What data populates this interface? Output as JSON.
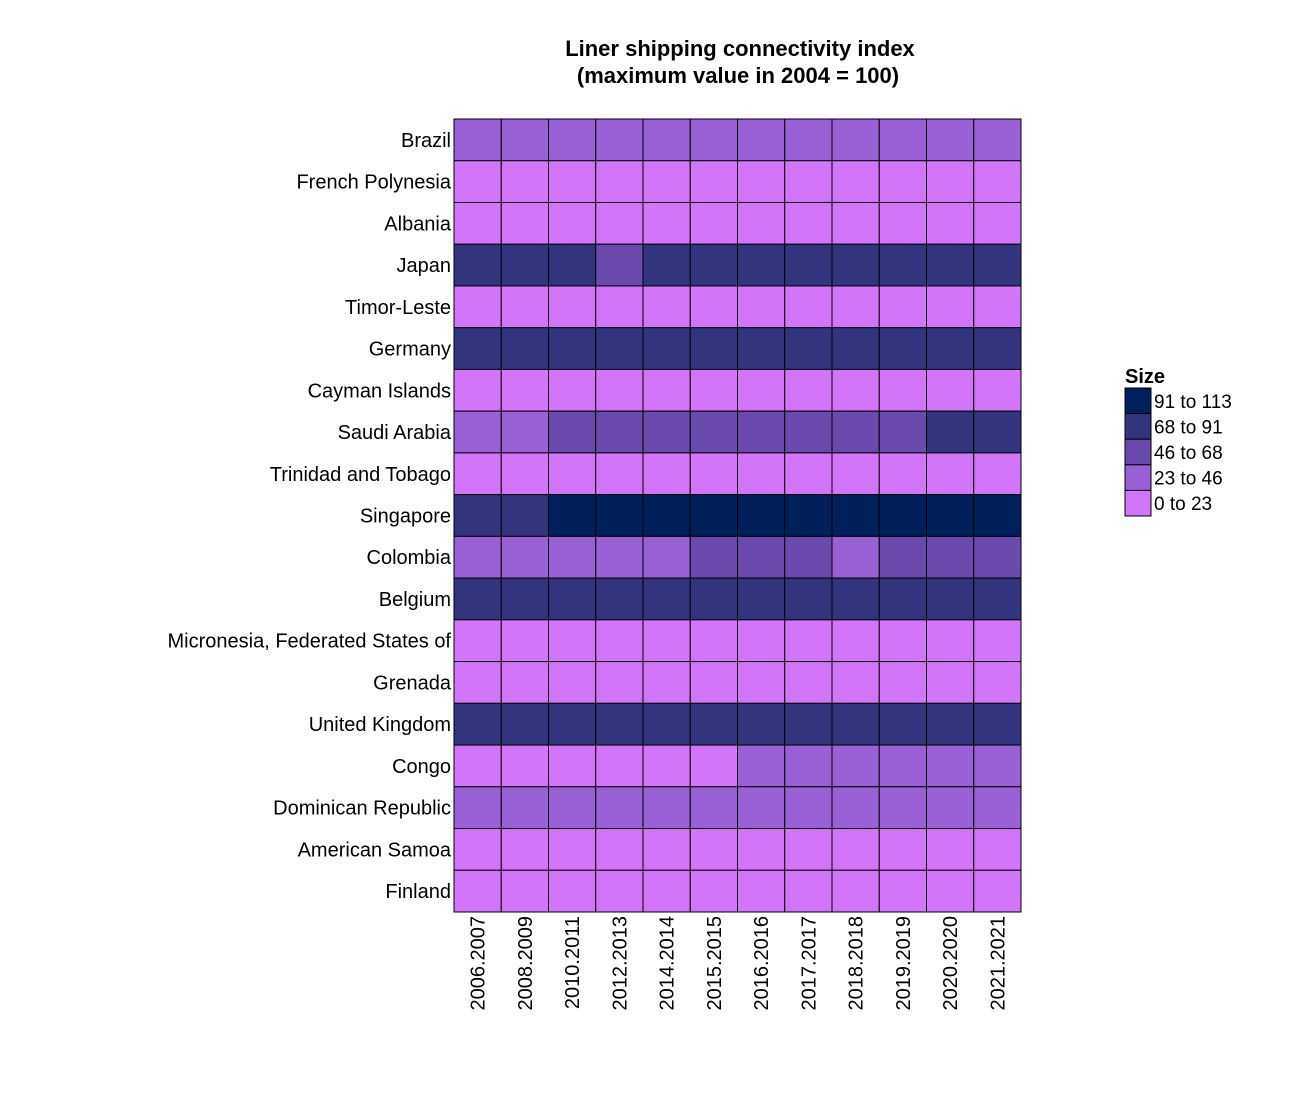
{
  "chart_data": {
    "type": "heatmap",
    "title": "Liner shipping connectivity index",
    "subtitle": "(maximum value in 2004 = 100)",
    "rows": [
      "Brazil",
      "French Polynesia",
      "Albania",
      "Japan",
      "Timor-Leste",
      "Germany",
      "Cayman Islands",
      "Saudi Arabia",
      "Trinidad and Tobago",
      "Singapore",
      "Colombia",
      "Belgium",
      "Micronesia, Federated States of",
      "Grenada",
      "United Kingdom",
      "Congo",
      "Dominican Republic",
      "American Samoa",
      "Finland"
    ],
    "columns": [
      "2006.2007",
      "2008.2009",
      "2010.2011",
      "2012.2013",
      "2014.2014",
      "2015.2015",
      "2016.2016",
      "2017.2017",
      "2018.2018",
      "2019.2019",
      "2020.2020",
      "2021.2021"
    ],
    "bin_index_values": [
      [
        1,
        1,
        1,
        1,
        1,
        1,
        1,
        1,
        1,
        1,
        1,
        1
      ],
      [
        0,
        0,
        0,
        0,
        0,
        0,
        0,
        0,
        0,
        0,
        0,
        0
      ],
      [
        0,
        0,
        0,
        0,
        0,
        0,
        0,
        0,
        0,
        0,
        0,
        0
      ],
      [
        3,
        3,
        3,
        2,
        3,
        3,
        3,
        3,
        3,
        3,
        3,
        3
      ],
      [
        0,
        0,
        0,
        0,
        0,
        0,
        0,
        0,
        0,
        0,
        0,
        0
      ],
      [
        3,
        3,
        3,
        3,
        3,
        3,
        3,
        3,
        3,
        3,
        3,
        3
      ],
      [
        0,
        0,
        0,
        0,
        0,
        0,
        0,
        0,
        0,
        0,
        0,
        0
      ],
      [
        1,
        1,
        2,
        2,
        2,
        2,
        2,
        2,
        2,
        2,
        3,
        3
      ],
      [
        0,
        0,
        0,
        0,
        0,
        0,
        0,
        0,
        0,
        0,
        0,
        0
      ],
      [
        3,
        3,
        4,
        4,
        4,
        4,
        4,
        4,
        4,
        4,
        4,
        4
      ],
      [
        1,
        1,
        1,
        1,
        1,
        2,
        2,
        2,
        1,
        2,
        2,
        2
      ],
      [
        3,
        3,
        3,
        3,
        3,
        3,
        3,
        3,
        3,
        3,
        3,
        3
      ],
      [
        0,
        0,
        0,
        0,
        0,
        0,
        0,
        0,
        0,
        0,
        0,
        0
      ],
      [
        0,
        0,
        0,
        0,
        0,
        0,
        0,
        0,
        0,
        0,
        0,
        0
      ],
      [
        3,
        3,
        3,
        3,
        3,
        3,
        3,
        3,
        3,
        3,
        3,
        3
      ],
      [
        0,
        0,
        0,
        0,
        0,
        0,
        1,
        1,
        1,
        1,
        1,
        1
      ],
      [
        1,
        1,
        1,
        1,
        1,
        1,
        1,
        1,
        1,
        1,
        1,
        1
      ],
      [
        0,
        0,
        0,
        0,
        0,
        0,
        0,
        0,
        0,
        0,
        0,
        0
      ],
      [
        0,
        0,
        0,
        0,
        0,
        0,
        0,
        0,
        0,
        0,
        0,
        0
      ]
    ],
    "legend": {
      "title": "Size",
      "placement": "right",
      "bins": [
        {
          "label": "91 to 113",
          "color": "#00205b"
        },
        {
          "label": "68 to 91",
          "color": "#32357e"
        },
        {
          "label": "46 to 68",
          "color": "#6a4aad"
        },
        {
          "label": "23 to 46",
          "color": "#9a61d6"
        },
        {
          "label": "0 to 23",
          "color": "#d375f8"
        }
      ]
    },
    "cell_border_color": "#000000"
  }
}
